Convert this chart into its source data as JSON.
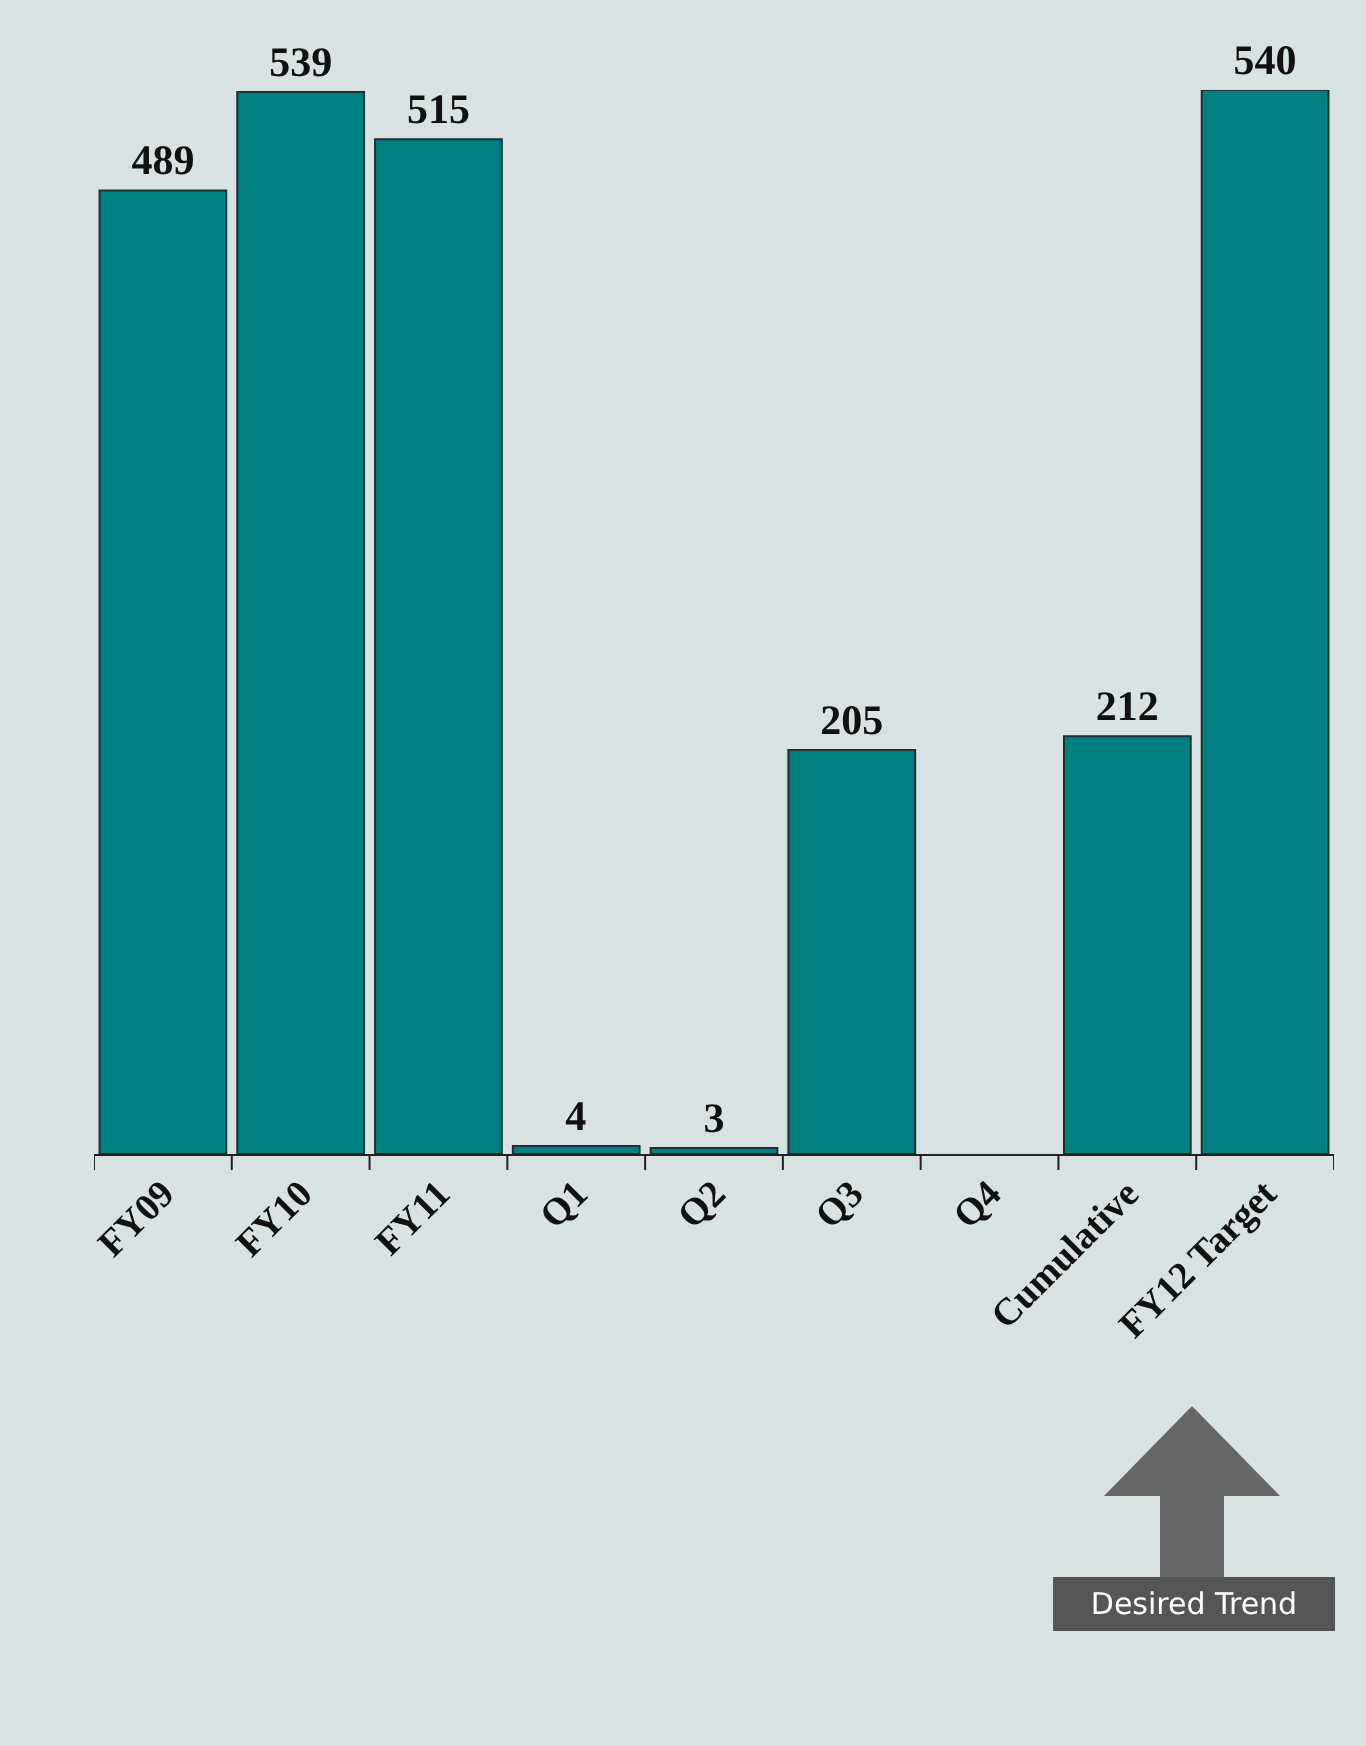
{
  "chart_data": {
    "type": "bar",
    "categories": [
      "FY09",
      "FY10",
      "FY11",
      "Q1",
      "Q2",
      "Q3",
      "Q4",
      "Cumulative",
      "FY12 Target"
    ],
    "values": [
      489,
      539,
      515,
      4,
      3,
      205,
      null,
      212,
      540
    ],
    "color": "#008080",
    "data_labels": true,
    "grid": false,
    "legend": false,
    "annotations": [
      "Desired Trend"
    ]
  }
}
